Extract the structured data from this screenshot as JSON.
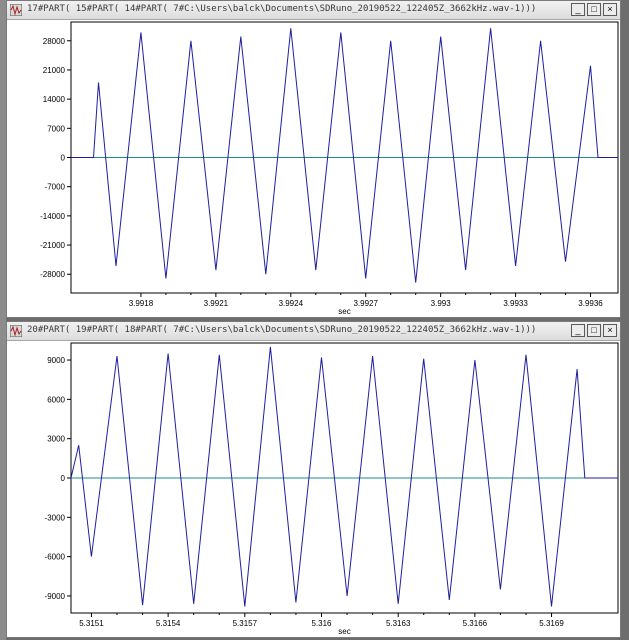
{
  "windows": [
    {
      "title": "17#PART( 15#PART( 14#PART( 7#C:\\Users\\balck\\Documents\\SDRuno_20190522_122405Z_3662kHz.wav-1)))",
      "buttons": {
        "minimize": "_",
        "maximize": "□",
        "close": "×"
      }
    },
    {
      "title": "20#PART( 19#PART( 18#PART( 7#C:\\Users\\balck\\Documents\\SDRuno_20190522_122405Z_3662kHz.wav-1)))",
      "buttons": {
        "minimize": "_",
        "maximize": "□",
        "close": "×"
      }
    }
  ],
  "chart_data": [
    {
      "type": "line",
      "xlabel": "sec",
      "ylabel": "",
      "x_ticks": [
        "3.9918",
        "3.9921",
        "3.9924",
        "3.9927",
        "3.993",
        "3.9933",
        "3.9936"
      ],
      "x_tick_values": [
        3.9918,
        3.9921,
        3.9924,
        3.9927,
        3.993,
        3.9933,
        3.9936
      ],
      "y_ticks": [
        "28000",
        "21000",
        "14000",
        "7000",
        "0",
        "-7000",
        "-14000",
        "-21000",
        "-28000"
      ],
      "y_tick_values": [
        28000,
        21000,
        14000,
        7000,
        0,
        -7000,
        -14000,
        -21000,
        -28000
      ],
      "xlim": [
        3.99152,
        3.99371
      ],
      "ylim": [
        -32500,
        32500
      ],
      "x": [
        3.99152,
        3.99161,
        3.99163,
        3.9917,
        3.9918,
        3.9919,
        3.992,
        3.9921,
        3.9922,
        3.9923,
        3.9924,
        3.9925,
        3.9926,
        3.9927,
        3.9928,
        3.9929,
        3.993,
        3.9931,
        3.9932,
        3.9933,
        3.9934,
        3.9935,
        3.9936,
        3.99363,
        3.99371
      ],
      "values": [
        0,
        0,
        18000,
        -26000,
        30000,
        -29000,
        28000,
        -27000,
        29000,
        -28000,
        31000,
        -27000,
        30000,
        -29000,
        28000,
        -30000,
        29000,
        -27000,
        31000,
        -26000,
        28000,
        -25000,
        22000,
        0,
        0
      ],
      "colors": {
        "signal": "#1f1f9e",
        "zero_line": "#1e8c8c"
      },
      "grid": false
    },
    {
      "type": "line",
      "xlabel": "sec",
      "ylabel": "",
      "x_ticks": [
        "5.3151",
        "5.3154",
        "5.3157",
        "5.316",
        "5.3163",
        "5.3166",
        "5.3169"
      ],
      "x_tick_values": [
        5.3151,
        5.3154,
        5.3157,
        5.316,
        5.3163,
        5.3166,
        5.3169
      ],
      "y_ticks": [
        "9000",
        "6000",
        "3000",
        "0",
        "-3000",
        "-6000",
        "-9000"
      ],
      "y_tick_values": [
        9000,
        6000,
        3000,
        0,
        -3000,
        -6000,
        -9000
      ],
      "xlim": [
        5.31502,
        5.31716
      ],
      "ylim": [
        -10300,
        10300
      ],
      "x": [
        5.31502,
        5.31505,
        5.3151,
        5.3152,
        5.3153,
        5.3154,
        5.3155,
        5.3156,
        5.3157,
        5.3158,
        5.3159,
        5.316,
        5.3161,
        5.3162,
        5.3163,
        5.3164,
        5.3165,
        5.3166,
        5.3167,
        5.3168,
        5.3169,
        5.317,
        5.31703,
        5.31716
      ],
      "values": [
        0,
        2500,
        -6000,
        9300,
        -9700,
        9500,
        -9600,
        9400,
        -9800,
        10000,
        -9500,
        9200,
        -9000,
        9300,
        -9600,
        9100,
        -9300,
        9000,
        -8500,
        9400,
        -9800,
        8300,
        0,
        0
      ],
      "colors": {
        "signal": "#1f1f9e",
        "zero_line": "#1e8c8c"
      },
      "grid": false
    }
  ]
}
